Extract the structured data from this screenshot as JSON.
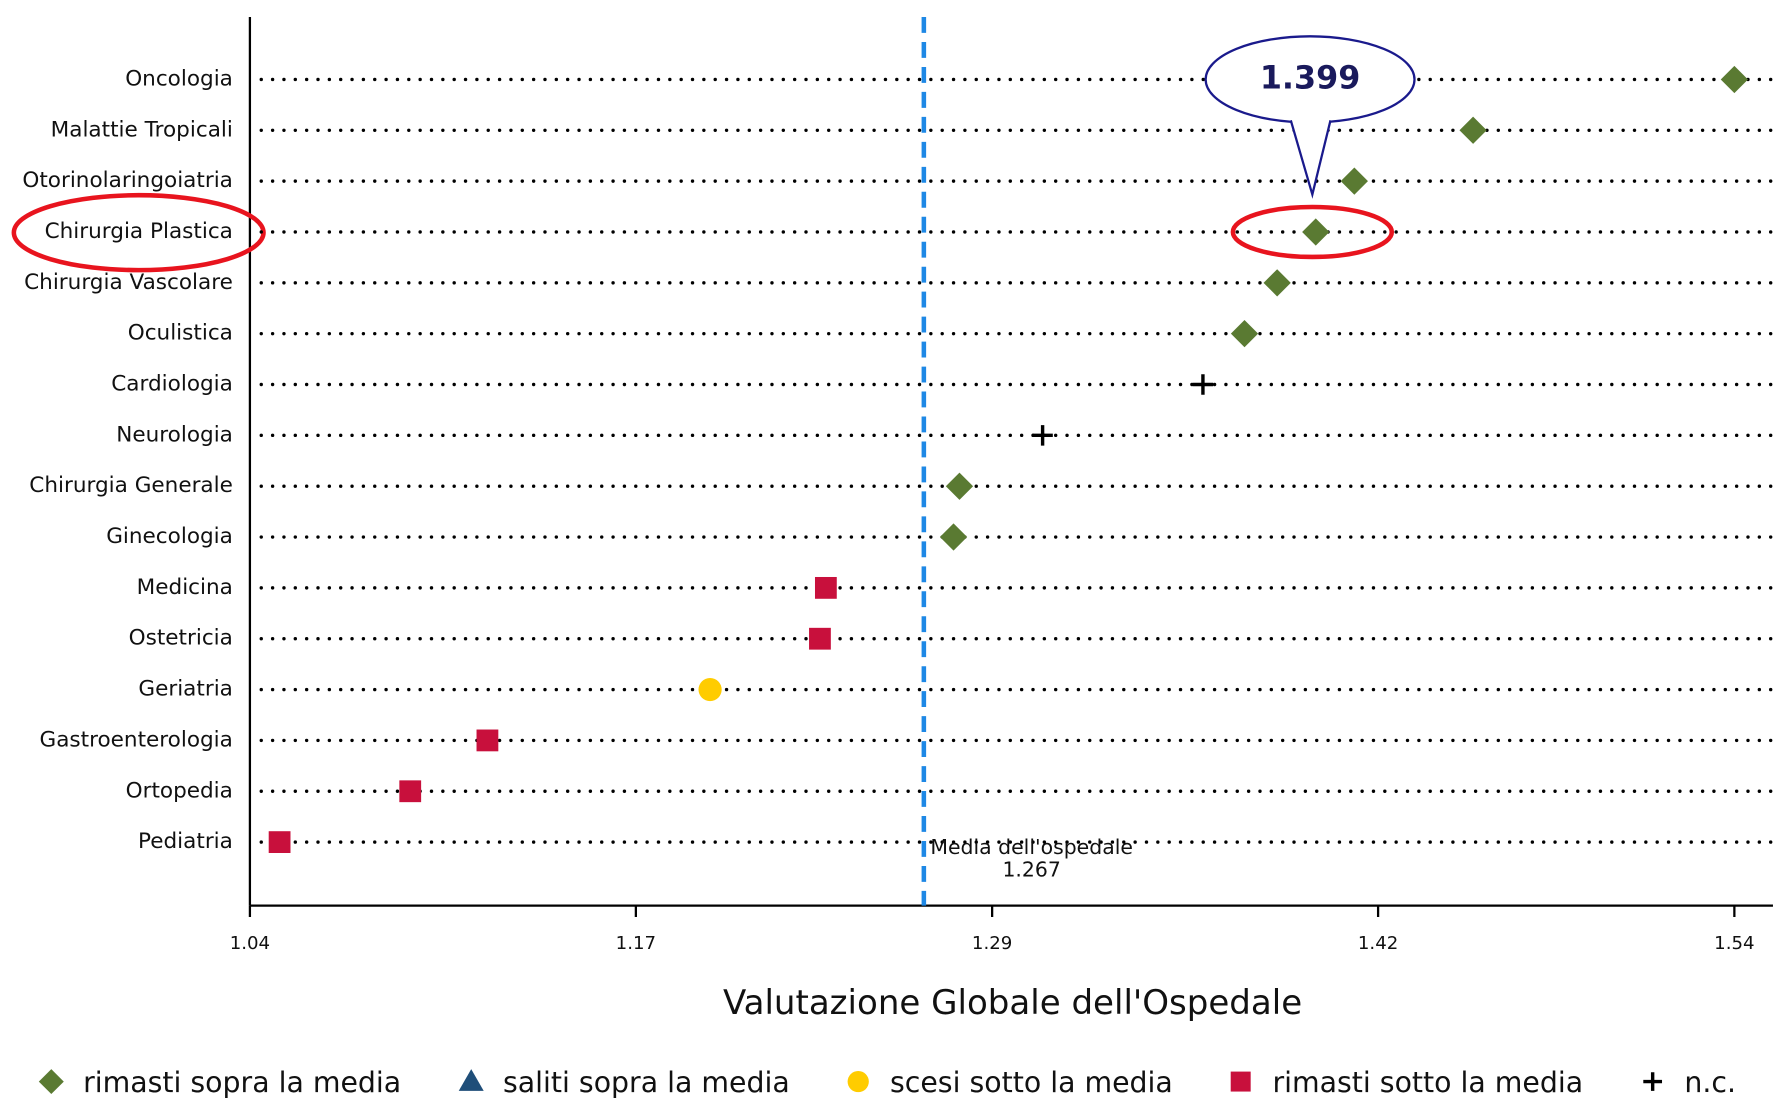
{
  "chart_data": {
    "type": "dot",
    "xlabel": "Valutazione Globale dell'Ospedale",
    "categories": [
      "Oncologia",
      "Malattie Tropicali",
      "Otorinolaringoiatria",
      "Chirurgia Plastica",
      "Chirurgia Vascolare",
      "Oculistica",
      "Cardiologia",
      "Neurologia",
      "Chirurgia Generale",
      "Ginecologia",
      "Medicina",
      "Ostetricia",
      "Geriatria",
      "Gastroenterologia",
      "Ortopedia",
      "Pediatria"
    ],
    "series": [
      {
        "name": "rimasti sopra la media",
        "color": "#5a7a32",
        "marker": "diamond",
        "values": [
          1.54,
          1.452,
          1.412,
          1.399,
          1.386,
          1.375,
          null,
          null,
          1.279,
          1.277,
          null,
          null,
          null,
          null,
          null,
          null
        ]
      },
      {
        "name": "saliti sopra la media",
        "color": "#1f4e79",
        "marker": "triangle",
        "values": [
          null,
          null,
          null,
          null,
          null,
          null,
          null,
          null,
          null,
          null,
          null,
          null,
          null,
          null,
          null,
          null
        ]
      },
      {
        "name": "scesi sotto la media",
        "color": "#ffcc00",
        "marker": "circle",
        "values": [
          null,
          null,
          null,
          null,
          null,
          null,
          null,
          null,
          null,
          null,
          null,
          null,
          1.195,
          null,
          null,
          null
        ]
      },
      {
        "name": "rimasti sotto la media",
        "color": "#c8103c",
        "marker": "square",
        "values": [
          null,
          null,
          null,
          null,
          null,
          null,
          null,
          null,
          null,
          null,
          1.234,
          1.232,
          null,
          1.12,
          1.094,
          1.05
        ]
      },
      {
        "name": "n.c.",
        "color": "#000000",
        "marker": "plus",
        "values": [
          null,
          null,
          null,
          null,
          null,
          null,
          1.361,
          1.307,
          null,
          null,
          null,
          null,
          null,
          null,
          null,
          null
        ]
      }
    ],
    "xlim": [
      1.04,
      1.553
    ],
    "xticks": [
      1.04,
      1.17,
      1.29,
      1.42,
      1.54
    ],
    "reference_line": {
      "value": 1.267,
      "label": "Media dell'ospedale",
      "color": "#1e88e5"
    }
  }
}
